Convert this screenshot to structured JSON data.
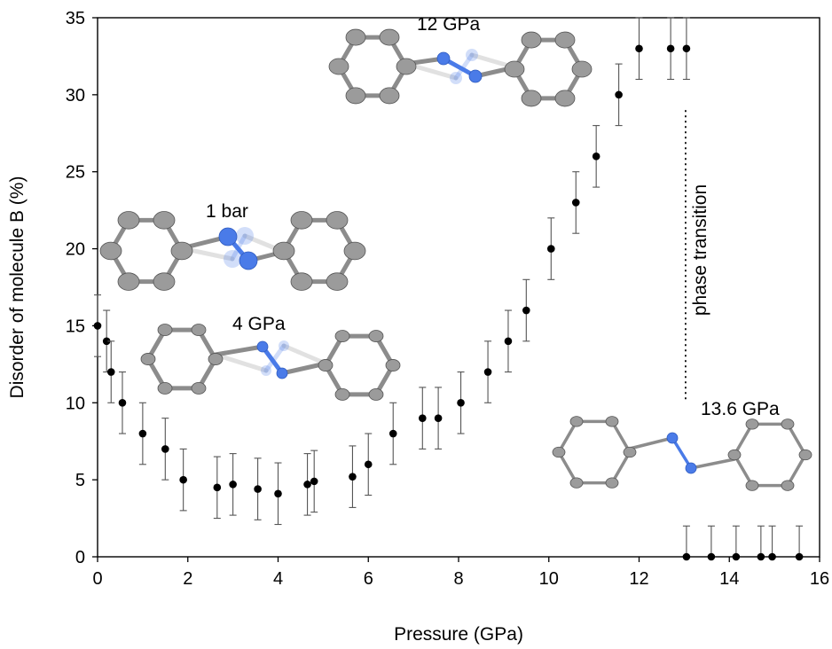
{
  "chart_data": {
    "type": "scatter",
    "title": "",
    "xlabel": "Pressure (GPa)",
    "ylabel": "Disorder of molecule B (%)",
    "xlim": [
      0,
      16
    ],
    "ylim": [
      0,
      35
    ],
    "x_ticks": [
      0,
      2,
      4,
      6,
      8,
      10,
      12,
      14,
      16
    ],
    "y_ticks": [
      0,
      5,
      10,
      15,
      20,
      25,
      30,
      35
    ],
    "grid": false,
    "legend": "none",
    "marker_color": "#000000",
    "points": [
      {
        "x": 0.0,
        "y": 15,
        "err": 2
      },
      {
        "x": 0.2,
        "y": 14,
        "err": 2
      },
      {
        "x": 0.3,
        "y": 12,
        "err": 2
      },
      {
        "x": 0.55,
        "y": 10,
        "err": 2
      },
      {
        "x": 1.0,
        "y": 8,
        "err": 2
      },
      {
        "x": 1.5,
        "y": 7,
        "err": 2
      },
      {
        "x": 1.9,
        "y": 5,
        "err": 2
      },
      {
        "x": 2.65,
        "y": 4.5,
        "err": 2
      },
      {
        "x": 3.0,
        "y": 4.7,
        "err": 2
      },
      {
        "x": 3.55,
        "y": 4.4,
        "err": 2
      },
      {
        "x": 4.0,
        "y": 4.1,
        "err": 2
      },
      {
        "x": 4.65,
        "y": 4.7,
        "err": 2
      },
      {
        "x": 4.8,
        "y": 4.9,
        "err": 2
      },
      {
        "x": 5.65,
        "y": 5.2,
        "err": 2
      },
      {
        "x": 6.0,
        "y": 6,
        "err": 2
      },
      {
        "x": 6.55,
        "y": 8,
        "err": 2
      },
      {
        "x": 7.2,
        "y": 9,
        "err": 2
      },
      {
        "x": 7.55,
        "y": 9,
        "err": 2
      },
      {
        "x": 8.05,
        "y": 10,
        "err": 2
      },
      {
        "x": 8.65,
        "y": 12,
        "err": 2
      },
      {
        "x": 9.1,
        "y": 14,
        "err": 2
      },
      {
        "x": 9.5,
        "y": 16,
        "err": 2
      },
      {
        "x": 10.05,
        "y": 20,
        "err": 2
      },
      {
        "x": 10.6,
        "y": 23,
        "err": 2
      },
      {
        "x": 11.05,
        "y": 26,
        "err": 2
      },
      {
        "x": 11.55,
        "y": 30,
        "err": 2
      },
      {
        "x": 12.0,
        "y": 33,
        "err": 2
      },
      {
        "x": 12.7,
        "y": 33,
        "err": 2
      },
      {
        "x": 13.05,
        "y": 33,
        "err": 2
      },
      {
        "x": 13.05,
        "y": 0,
        "err": 2
      },
      {
        "x": 13.6,
        "y": 0,
        "err": 2
      },
      {
        "x": 14.15,
        "y": 0,
        "err": 2
      },
      {
        "x": 14.7,
        "y": 0,
        "err": 2
      },
      {
        "x": 14.95,
        "y": 0,
        "err": 2
      },
      {
        "x": 15.55,
        "y": 0,
        "err": 2
      }
    ],
    "phase_transition": {
      "x": 13.05,
      "y_range": [
        10,
        29
      ],
      "label": "phase transition"
    },
    "annotations": [
      {
        "label": "12 GPa"
      },
      {
        "label": "1 bar"
      },
      {
        "label": "4 GPa"
      },
      {
        "label": "13.6 GPa"
      }
    ],
    "structure_colors": {
      "carbon": "#9b9b9b",
      "nitrogen": "#4a7be8",
      "bond": "#8c8c8c",
      "outline": "#555555"
    }
  }
}
